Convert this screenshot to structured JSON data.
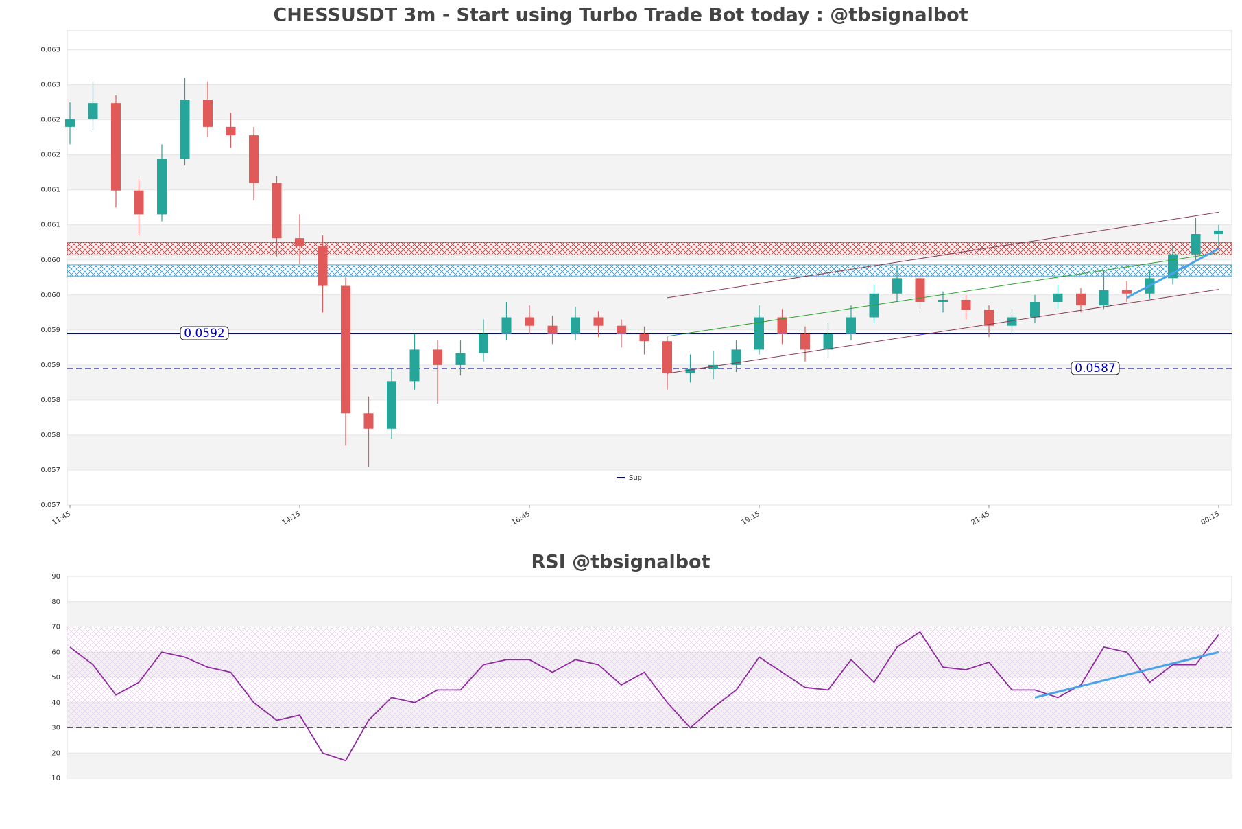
{
  "chart_data": [
    {
      "type": "candlestick",
      "title": "CHESSUSDT 3m - Start using Turbo Trade Bot today : @tbsignalbot",
      "categories": [
        "11:45",
        "12:00",
        "12:15",
        "12:30",
        "12:45",
        "13:00",
        "13:15",
        "13:30",
        "13:45",
        "14:00",
        "14:15",
        "14:30",
        "14:45",
        "15:00",
        "15:15",
        "15:30",
        "15:45",
        "16:00",
        "16:15",
        "16:30",
        "16:45",
        "17:00",
        "17:15",
        "17:30",
        "17:45",
        "18:00",
        "18:15",
        "18:30",
        "18:45",
        "19:00",
        "19:15",
        "19:30",
        "19:45",
        "20:00",
        "20:15",
        "20:30",
        "20:45",
        "21:00",
        "21:15",
        "21:30",
        "21:45",
        "22:00",
        "22:15",
        "22:30",
        "22:45",
        "23:00",
        "23:15",
        "23:30",
        "23:45",
        "00:00",
        "00:15"
      ],
      "ohlc": [
        [
          0.06215,
          0.0625,
          0.0619,
          0.06226
        ],
        [
          0.06226,
          0.0628,
          0.0621,
          0.06249
        ],
        [
          0.06249,
          0.0626,
          0.061,
          0.06124
        ],
        [
          0.06124,
          0.0614,
          0.0606,
          0.0609
        ],
        [
          0.0609,
          0.0619,
          0.0608,
          0.06169
        ],
        [
          0.06169,
          0.06285,
          0.0616,
          0.06254
        ],
        [
          0.06254,
          0.0628,
          0.062,
          0.06215
        ],
        [
          0.06215,
          0.06235,
          0.06185,
          0.06203
        ],
        [
          0.06203,
          0.06215,
          0.0611,
          0.06135
        ],
        [
          0.06135,
          0.06145,
          0.0603,
          0.06056
        ],
        [
          0.06056,
          0.0609,
          0.0602,
          0.06045
        ],
        [
          0.06045,
          0.0606,
          0.0595,
          0.05988
        ],
        [
          0.05988,
          0.06,
          0.0576,
          0.05806
        ],
        [
          0.05806,
          0.0583,
          0.0573,
          0.05784
        ],
        [
          0.05784,
          0.0587,
          0.0577,
          0.05852
        ],
        [
          0.05852,
          0.0592,
          0.0584,
          0.05897
        ],
        [
          0.05897,
          0.0591,
          0.0582,
          0.05875
        ],
        [
          0.05875,
          0.0591,
          0.0586,
          0.05892
        ],
        [
          0.05892,
          0.0594,
          0.0588,
          0.0592
        ],
        [
          0.0592,
          0.05965,
          0.0591,
          0.05943
        ],
        [
          0.05943,
          0.0596,
          0.0592,
          0.05931
        ],
        [
          0.05931,
          0.05945,
          0.05905,
          0.0592
        ],
        [
          0.0592,
          0.05958,
          0.0591,
          0.05943
        ],
        [
          0.05943,
          0.05952,
          0.05915,
          0.05931
        ],
        [
          0.05931,
          0.0594,
          0.059,
          0.0592
        ],
        [
          0.0592,
          0.0593,
          0.0589,
          0.05909
        ],
        [
          0.05909,
          0.05915,
          0.0584,
          0.05863
        ],
        [
          0.05863,
          0.0589,
          0.0585,
          0.0587
        ],
        [
          0.0587,
          0.05895,
          0.05855,
          0.05875
        ],
        [
          0.05875,
          0.0591,
          0.05865,
          0.05897
        ],
        [
          0.05897,
          0.0596,
          0.0589,
          0.05943
        ],
        [
          0.05943,
          0.05955,
          0.05905,
          0.0592
        ],
        [
          0.0592,
          0.0593,
          0.0588,
          0.05897
        ],
        [
          0.05897,
          0.05935,
          0.05885,
          0.0592
        ],
        [
          0.0592,
          0.0596,
          0.0591,
          0.05943
        ],
        [
          0.05943,
          0.0599,
          0.05935,
          0.05977
        ],
        [
          0.05977,
          0.06015,
          0.05965,
          0.05999
        ],
        [
          0.05999,
          0.06005,
          0.05955,
          0.05965
        ],
        [
          0.05965,
          0.0598,
          0.0595,
          0.05968
        ],
        [
          0.05968,
          0.05975,
          0.0594,
          0.05954
        ],
        [
          0.05954,
          0.0596,
          0.05915,
          0.05931
        ],
        [
          0.05931,
          0.05955,
          0.0592,
          0.05943
        ],
        [
          0.05943,
          0.05975,
          0.05935,
          0.05965
        ],
        [
          0.05965,
          0.0599,
          0.05955,
          0.05977
        ],
        [
          0.05977,
          0.05985,
          0.0595,
          0.0596
        ],
        [
          0.0596,
          0.0601,
          0.05955,
          0.05982
        ],
        [
          0.05982,
          0.05995,
          0.05965,
          0.05977
        ],
        [
          0.05977,
          0.0601,
          0.0597,
          0.05999
        ],
        [
          0.05999,
          0.06045,
          0.0599,
          0.06033
        ],
        [
          0.06033,
          0.06085,
          0.06025,
          0.06062
        ],
        [
          0.06062,
          0.06075,
          0.06045,
          0.06067
        ]
      ],
      "colors": {
        "up": "#26a69a",
        "down": "#e05a5a"
      },
      "ylim": [
        0.05675,
        0.06353
      ],
      "yticks": [
        {
          "value": 0.05675,
          "label": "0.057"
        },
        {
          "value": 0.05725,
          "label": "0.057"
        },
        {
          "value": 0.05775,
          "label": "0.058"
        },
        {
          "value": 0.05825,
          "label": "0.058"
        },
        {
          "value": 0.05875,
          "label": "0.059"
        },
        {
          "value": 0.05925,
          "label": "0.059"
        },
        {
          "value": 0.05975,
          "label": "0.060"
        },
        {
          "value": 0.06025,
          "label": "0.060"
        },
        {
          "value": 0.06075,
          "label": "0.061"
        },
        {
          "value": 0.06125,
          "label": "0.061"
        },
        {
          "value": 0.06175,
          "label": "0.062"
        },
        {
          "value": 0.06225,
          "label": "0.062"
        },
        {
          "value": 0.06275,
          "label": "0.063"
        },
        {
          "value": 0.06325,
          "label": "0.063"
        }
      ],
      "xticks": [
        "11:45",
        "14:15",
        "16:45",
        "19:15",
        "21:45",
        "00:15"
      ],
      "levels": [
        {
          "name": "Sup",
          "value": 0.0592,
          "label": "0.0592",
          "color": "#0000bb",
          "style": "solid"
        },
        {
          "value": 0.0587,
          "label": "0.0587",
          "color": "#4444aa",
          "style": "dashed"
        }
      ],
      "zones": [
        {
          "range": [
            0.06032,
            0.0605
          ],
          "color": "#cc3333"
        },
        {
          "range": [
            0.06002,
            0.06018
          ],
          "color": "#3399cc"
        }
      ],
      "lines": [
        {
          "x": [
            "18:15",
            "00:15"
          ],
          "y": [
            0.05971,
            0.06093
          ],
          "color": "#8b3a52",
          "width": 1
        },
        {
          "x": [
            "18:15",
            "00:15"
          ],
          "y": [
            0.05916,
            0.06035
          ],
          "color": "#2ca02c",
          "width": 1
        },
        {
          "x": [
            "18:15",
            "00:15"
          ],
          "y": [
            0.05863,
            0.05983
          ],
          "color": "#8b3a52",
          "width": 1
        },
        {
          "x": [
            "23:15",
            "00:15"
          ],
          "y": [
            0.05971,
            0.06041
          ],
          "color": "#4aa3e8",
          "width": 3
        }
      ],
      "legend": "lower center"
    },
    {
      "type": "line",
      "title": "RSI @tbsignalbot",
      "categories": [
        "11:45",
        "12:00",
        "12:15",
        "12:30",
        "12:45",
        "13:00",
        "13:15",
        "13:30",
        "13:45",
        "14:00",
        "14:15",
        "14:30",
        "14:45",
        "15:00",
        "15:15",
        "15:30",
        "15:45",
        "16:00",
        "16:15",
        "16:30",
        "16:45",
        "17:00",
        "17:15",
        "17:30",
        "17:45",
        "18:00",
        "18:15",
        "18:30",
        "18:45",
        "19:00",
        "19:15",
        "19:30",
        "19:45",
        "20:00",
        "20:15",
        "20:30",
        "20:45",
        "21:00",
        "21:15",
        "21:30",
        "21:45",
        "22:00",
        "22:15",
        "22:30",
        "22:45",
        "23:00",
        "23:15",
        "23:30",
        "23:45",
        "00:00",
        "00:15"
      ],
      "values": [
        62,
        55,
        43,
        48,
        60,
        58,
        54,
        52,
        40,
        33,
        35,
        20,
        17,
        33,
        42,
        40,
        45,
        45,
        55,
        57,
        57,
        52,
        57,
        55,
        47,
        52,
        40,
        30,
        38,
        45,
        58,
        52,
        46,
        45,
        57,
        48,
        62,
        68,
        54,
        53,
        56,
        45,
        45,
        42,
        47,
        62,
        60,
        48,
        55,
        55,
        67
      ],
      "color": "#8e2a9e",
      "ylim": [
        10,
        90
      ],
      "yticks": [
        10,
        20,
        30,
        40,
        50,
        60,
        70,
        80,
        90
      ],
      "hlines": [
        70,
        30
      ],
      "lines": [
        {
          "x": [
            "22:15",
            "00:15"
          ],
          "y": [
            42,
            60
          ],
          "color": "#4aa3e8",
          "width": 3
        }
      ]
    }
  ]
}
